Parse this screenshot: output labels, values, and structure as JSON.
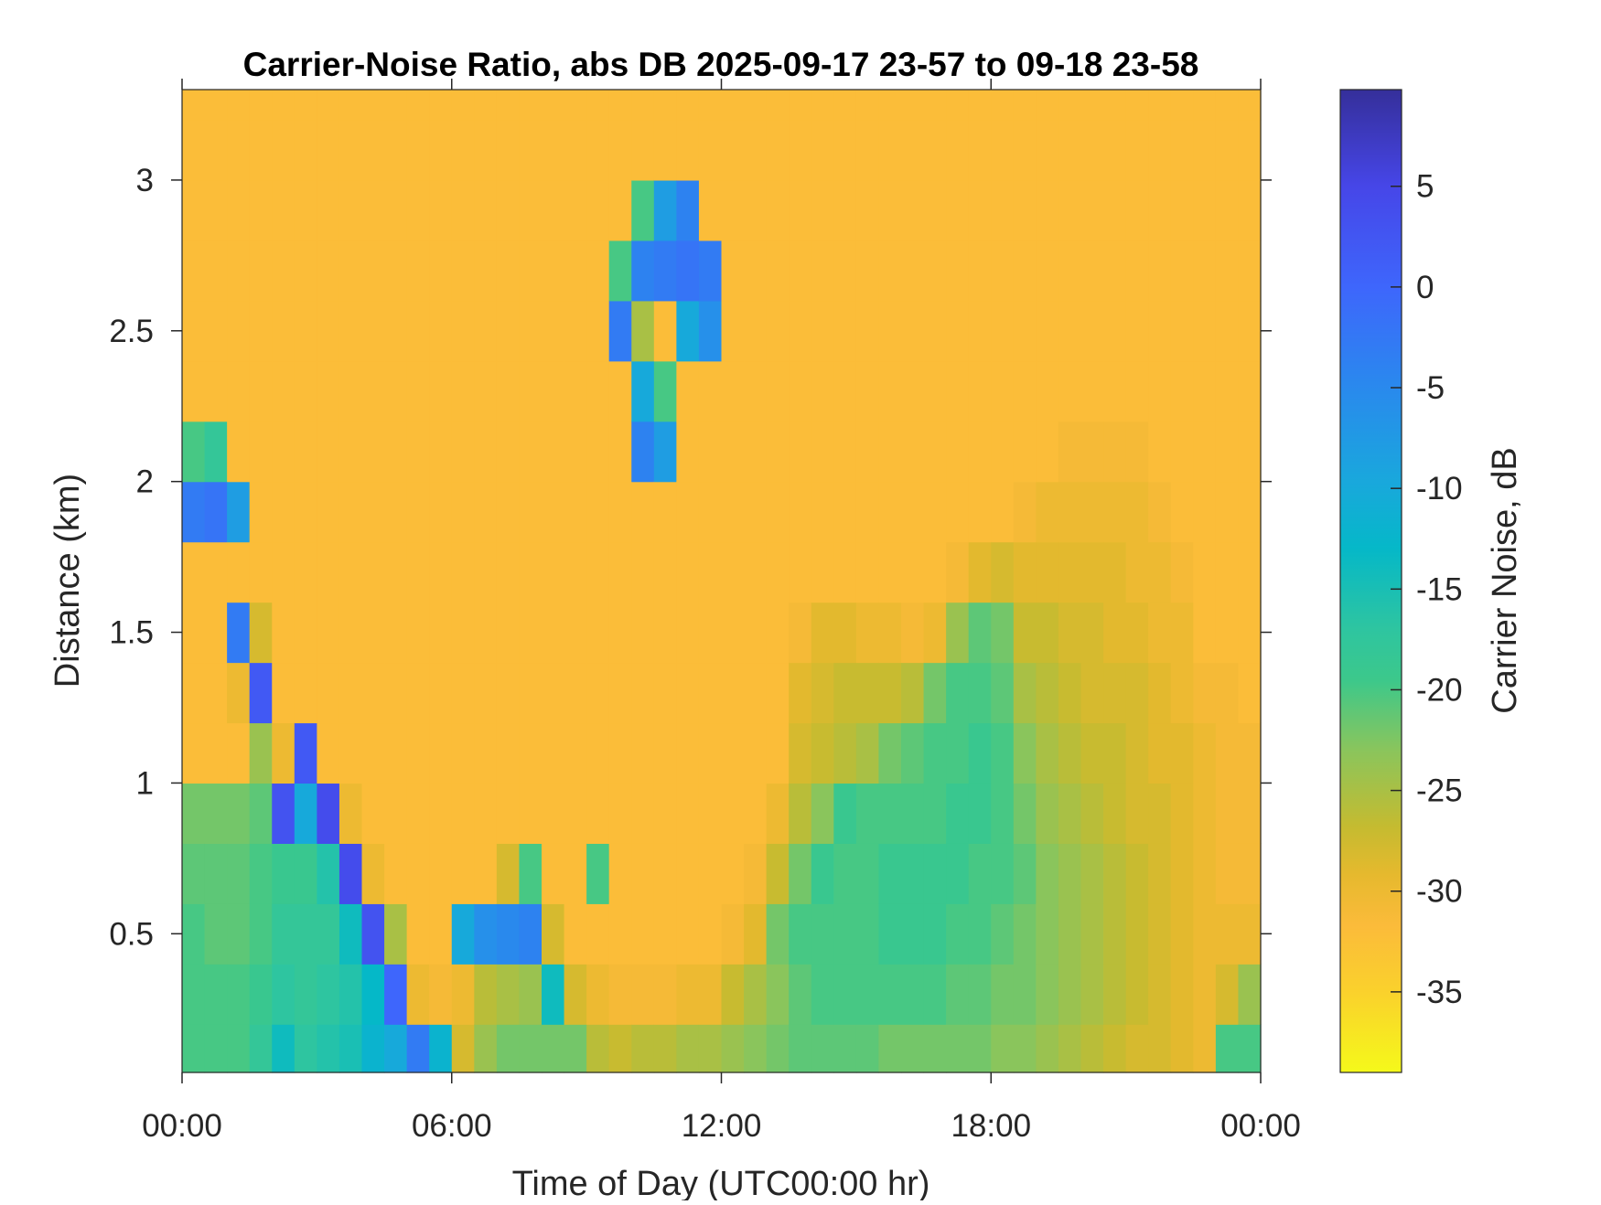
{
  "chart_data": {
    "type": "heatmap",
    "title": "Carrier-Noise Ratio, abs DB 2025-09-17 23-57 to 09-18 23-58",
    "xlabel": "Time of Day (UTC00:00 hr)",
    "ylabel": "Distance (km)",
    "colorbar_label": "Carrier Noise, dB",
    "xlim": [
      0,
      24
    ],
    "ylim": [
      0.04,
      3.3
    ],
    "clim": [
      -39,
      9.8
    ],
    "x_ticks": [
      0,
      6,
      12,
      18,
      24
    ],
    "x_tick_labels": [
      "00:00",
      "06:00",
      "12:00",
      "18:00",
      "00:00"
    ],
    "y_ticks": [
      0.5,
      1,
      1.5,
      2,
      2.5,
      3
    ],
    "y_tick_labels": [
      "0.5",
      "1",
      "1.5",
      "2",
      "2.5",
      "3"
    ],
    "colorbar_ticks": [
      5,
      0,
      -5,
      -10,
      -15,
      -20,
      -25,
      -30,
      -35
    ],
    "colorbar_tick_labels": [
      "5",
      "0",
      "-5",
      "-10",
      "-15",
      "-20",
      "-25",
      "-30",
      "-35"
    ],
    "colormap": "parula (reversed: high dB = dark blue)",
    "colormap_stops": [
      [
        9.8,
        "#352f9a"
      ],
      [
        5,
        "#4646e8"
      ],
      [
        0,
        "#3e66fc"
      ],
      [
        -4.8,
        "#2a88ee"
      ],
      [
        -9.7,
        "#19a8dc"
      ],
      [
        -13,
        "#05b8c8"
      ],
      [
        -17,
        "#2ec5a0"
      ],
      [
        -19.5,
        "#3cc88b"
      ],
      [
        -23,
        "#8ac55c"
      ],
      [
        -26.8,
        "#c5bb30"
      ],
      [
        -29.2,
        "#e6b92e"
      ],
      [
        -31.7,
        "#fbbb3a"
      ],
      [
        -35,
        "#fad12c"
      ],
      [
        -39,
        "#f5f91a"
      ]
    ],
    "x": [
      0.25,
      0.75,
      1.25,
      1.75,
      2.25,
      2.75,
      3.25,
      3.75,
      4.25,
      4.75,
      5.25,
      5.75,
      6.25,
      6.75,
      7.25,
      7.75,
      8.25,
      8.75,
      9.25,
      9.75,
      10.25,
      10.75,
      11.25,
      11.75,
      12.25,
      12.75,
      13.25,
      13.75,
      14.25,
      14.75,
      15.25,
      15.75,
      16.25,
      16.75,
      17.25,
      17.75,
      18.25,
      18.75,
      19.25,
      19.75,
      20.25,
      20.75,
      21.25,
      21.75,
      22.25,
      22.75,
      23.25,
      23.75
    ],
    "y": [
      0.1,
      0.3,
      0.5,
      0.7,
      0.9,
      1.1,
      1.3,
      1.5,
      1.7,
      1.9,
      2.1,
      2.3,
      2.5,
      2.7,
      2.9,
      3.1,
      3.3
    ],
    "z_indexing": "z[time][distance]",
    "z": [
      [
        -20,
        -20,
        -20,
        -21,
        -22,
        -32,
        -32,
        -32,
        -32,
        -3,
        -20,
        -32,
        -32,
        -32,
        -32,
        -32,
        -32
      ],
      [
        -20,
        -20,
        -21,
        -21,
        -22,
        -32,
        -32,
        -32,
        -32,
        -2,
        -18,
        -32,
        -32,
        -32,
        -32,
        -32,
        -32
      ],
      [
        -20,
        -20,
        -21,
        -21,
        -22,
        -32,
        -30,
        -3,
        -32,
        -8,
        -32,
        -32,
        -32,
        -32,
        -32,
        -32,
        -32
      ],
      [
        -18,
        -19,
        -20,
        -20,
        -21,
        -24,
        2,
        -28,
        -32,
        -32,
        -32,
        -32,
        -32,
        -32,
        -32,
        -32,
        -32
      ],
      [
        -14,
        -17,
        -18,
        -19,
        3,
        -30,
        -32,
        -32,
        -32,
        -32,
        -32,
        -32,
        -32,
        -32,
        -32,
        -32,
        -32
      ],
      [
        -17,
        -18,
        -18,
        -19,
        -10,
        2,
        -32,
        -32,
        -32,
        -32,
        -32,
        -32,
        -32,
        -32,
        -32,
        -32,
        -32
      ],
      [
        -16,
        -17,
        -18,
        -16,
        4,
        -32,
        -32,
        -32,
        -32,
        -32,
        -32,
        -32,
        -32,
        -32,
        -32,
        -32,
        -32
      ],
      [
        -15,
        -16,
        -14,
        4,
        -30,
        -32,
        -32,
        -32,
        -32,
        -32,
        -32,
        -32,
        -32,
        -32,
        -32,
        -32,
        -32
      ],
      [
        -12,
        -13,
        3,
        -30,
        -32,
        -32,
        -32,
        -32,
        -32,
        -32,
        -32,
        -32,
        -32,
        -32,
        -32,
        -32,
        -32
      ],
      [
        -10,
        0,
        -25,
        -32,
        -32,
        -32,
        -32,
        -32,
        -32,
        -32,
        -32,
        -32,
        -32,
        -32,
        -32,
        -32,
        -32
      ],
      [
        -3,
        -30,
        -32,
        -32,
        -32,
        -32,
        -32,
        -32,
        -32,
        -32,
        -32,
        -32,
        -32,
        -32,
        -32,
        -32,
        -32
      ],
      [
        -12,
        -31,
        -32,
        -32,
        -32,
        -32,
        -32,
        -32,
        -32,
        -32,
        -32,
        -32,
        -32,
        -32,
        -32,
        -32,
        -32
      ],
      [
        -28,
        -30,
        -10,
        -32,
        -32,
        -32,
        -32,
        -32,
        -32,
        -32,
        -32,
        -32,
        -32,
        -32,
        -32,
        -32,
        -32
      ],
      [
        -24,
        -26,
        -6,
        -32,
        -32,
        -32,
        -32,
        -32,
        -32,
        -32,
        -32,
        -32,
        -32,
        -32,
        -32,
        -32,
        -32
      ],
      [
        -22,
        -25,
        -5,
        -28,
        -32,
        -32,
        -32,
        -32,
        -32,
        -32,
        -32,
        -32,
        -32,
        -32,
        -32,
        -32,
        -32
      ],
      [
        -22,
        -24,
        -4,
        -20,
        -32,
        -32,
        -32,
        -32,
        -32,
        -32,
        -32,
        -32,
        -32,
        -32,
        -32,
        -32,
        -32
      ],
      [
        -22,
        -14,
        -28,
        -32,
        -32,
        -32,
        -32,
        -32,
        -32,
        -32,
        -32,
        -32,
        -32,
        -32,
        -32,
        -32,
        -32
      ],
      [
        -22,
        -28,
        -32,
        -32,
        -32,
        -32,
        -32,
        -32,
        -32,
        -32,
        -32,
        -32,
        -32,
        -32,
        -32,
        -32,
        -32
      ],
      [
        -26,
        -30,
        -32,
        -20,
        -32,
        -32,
        -32,
        -32,
        -32,
        -32,
        -32,
        -32,
        -32,
        -32,
        -32,
        -32,
        -32
      ],
      [
        -27,
        -31,
        -32,
        -32,
        -32,
        -32,
        -32,
        -32,
        -32,
        -32,
        -32,
        -32,
        -3,
        -20,
        -32,
        -32,
        -32
      ],
      [
        -26,
        -31,
        -32,
        -32,
        -32,
        -32,
        -32,
        -32,
        -32,
        -32,
        -4,
        -10,
        -25,
        -4,
        -20,
        -32,
        -32
      ],
      [
        -26,
        -31,
        -32,
        -32,
        -32,
        -32,
        -32,
        -32,
        -32,
        -32,
        -8,
        -20,
        -32,
        -3,
        -8,
        -32,
        -32
      ],
      [
        -25,
        -30,
        -32,
        -32,
        -32,
        -32,
        -32,
        -32,
        -32,
        -32,
        -32,
        -32,
        -10,
        -2,
        -4,
        -32,
        -32
      ],
      [
        -25,
        -30,
        -32,
        -32,
        -32,
        -32,
        -32,
        -32,
        -32,
        -32,
        -32,
        -32,
        -6,
        -3,
        -32,
        -32,
        -32
      ],
      [
        -24,
        -27,
        -31,
        -32,
        -32,
        -32,
        -32,
        -32,
        -32,
        -32,
        -32,
        -32,
        -32,
        -32,
        -32,
        -32,
        -32
      ],
      [
        -23,
        -25,
        -29,
        -31,
        -32,
        -32,
        -32,
        -32,
        -32,
        -32,
        -32,
        -32,
        -32,
        -32,
        -32,
        -32,
        -32
      ],
      [
        -22,
        -23,
        -22,
        -27,
        -30,
        -32,
        -32,
        -32,
        -32,
        -32,
        -32,
        -32,
        -32,
        -32,
        -32,
        -32,
        -32
      ],
      [
        -21,
        -21,
        -20,
        -22,
        -26,
        -28,
        -29,
        -31,
        -32,
        -32,
        -32,
        -32,
        -32,
        -32,
        -32,
        -32,
        -32
      ],
      [
        -21,
        -20,
        -20,
        -19,
        -23,
        -27,
        -28,
        -29,
        -32,
        -32,
        -32,
        -32,
        -32,
        -32,
        -32,
        -32,
        -32
      ],
      [
        -21,
        -20,
        -20,
        -20,
        -19,
        -26,
        -27,
        -29,
        -32,
        -32,
        -32,
        -32,
        -32,
        -32,
        -32,
        -32,
        -32
      ],
      [
        -21,
        -20,
        -20,
        -20,
        -20,
        -25,
        -27,
        -30,
        -32,
        -32,
        -32,
        -32,
        -32,
        -32,
        -32,
        -32,
        -32
      ],
      [
        -22,
        -20,
        -19,
        -19,
        -20,
        -22,
        -27,
        -30,
        -32,
        -32,
        -32,
        -32,
        -32,
        -32,
        -32,
        -32,
        -32
      ],
      [
        -22,
        -20,
        -19,
        -19,
        -20,
        -21,
        -26,
        -31,
        -32,
        -32,
        -32,
        -32,
        -32,
        -32,
        -32,
        -32,
        -32
      ],
      [
        -22,
        -20,
        -19,
        -19,
        -20,
        -20,
        -22,
        -30,
        -32,
        -32,
        -32,
        -32,
        -32,
        -32,
        -32,
        -32,
        -32
      ],
      [
        -22,
        -21,
        -20,
        -19,
        -19,
        -20,
        -20,
        -24,
        -31,
        -32,
        -32,
        -32,
        -32,
        -32,
        -32,
        -32,
        -32
      ],
      [
        -22,
        -21,
        -20,
        -20,
        -19,
        -19,
        -20,
        -21,
        -29,
        -32,
        -32,
        -32,
        -32,
        -32,
        -32,
        -32,
        -32
      ],
      [
        -23,
        -22,
        -21,
        -20,
        -20,
        -20,
        -21,
        -22,
        -28,
        -32,
        -32,
        -32,
        -32,
        -32,
        -32,
        -32,
        -32
      ],
      [
        -23,
        -22,
        -22,
        -21,
        -22,
        -23,
        -25,
        -27,
        -29,
        -31,
        -32,
        -32,
        -32,
        -32,
        -32,
        -32,
        -32
      ],
      [
        -24,
        -23,
        -23,
        -23,
        -24,
        -25,
        -26,
        -27,
        -29,
        -30,
        -32,
        -32,
        -32,
        -32,
        -32,
        -32,
        -32
      ],
      [
        -25,
        -24,
        -24,
        -24,
        -25,
        -26,
        -27,
        -28,
        -29,
        -30,
        -31,
        -32,
        -32,
        -32,
        -32,
        -32,
        -32
      ],
      [
        -26,
        -25,
        -25,
        -25,
        -26,
        -27,
        -28,
        -28,
        -29,
        -30,
        -31,
        -32,
        -32,
        -32,
        -32,
        -32,
        -32
      ],
      [
        -27,
        -26,
        -26,
        -26,
        -27,
        -27,
        -28,
        -29,
        -29,
        -30,
        -31,
        -32,
        -32,
        -32,
        -32,
        -32,
        -32
      ],
      [
        -28,
        -27,
        -27,
        -27,
        -28,
        -28,
        -28,
        -29,
        -30,
        -30,
        -31,
        -32,
        -32,
        -32,
        -32,
        -32,
        -32
      ],
      [
        -28,
        -28,
        -28,
        -28,
        -28,
        -29,
        -29,
        -30,
        -30,
        -31,
        -32,
        -32,
        -32,
        -32,
        -32,
        -32,
        -32
      ],
      [
        -29,
        -29,
        -29,
        -29,
        -29,
        -29,
        -30,
        -30,
        -31,
        -32,
        -32,
        -32,
        -32,
        -32,
        -32,
        -32,
        -32
      ],
      [
        -30,
        -30,
        -30,
        -30,
        -30,
        -30,
        -31,
        -32,
        -32,
        -32,
        -32,
        -32,
        -32,
        -32,
        -32,
        -32,
        -32
      ],
      [
        -20,
        -28,
        -30,
        -31,
        -31,
        -31,
        -31,
        -32,
        -32,
        -32,
        -32,
        -32,
        -32,
        -32,
        -32,
        -32,
        -32
      ],
      [
        -20,
        -24,
        -30,
        -31,
        -31,
        -31,
        -32,
        -32,
        -32,
        -32,
        -32,
        -32,
        -32,
        -32,
        -32,
        -32,
        -32
      ]
    ],
    "grid": false,
    "colors": {
      "axis": "#262626",
      "title": "#000000"
    }
  }
}
